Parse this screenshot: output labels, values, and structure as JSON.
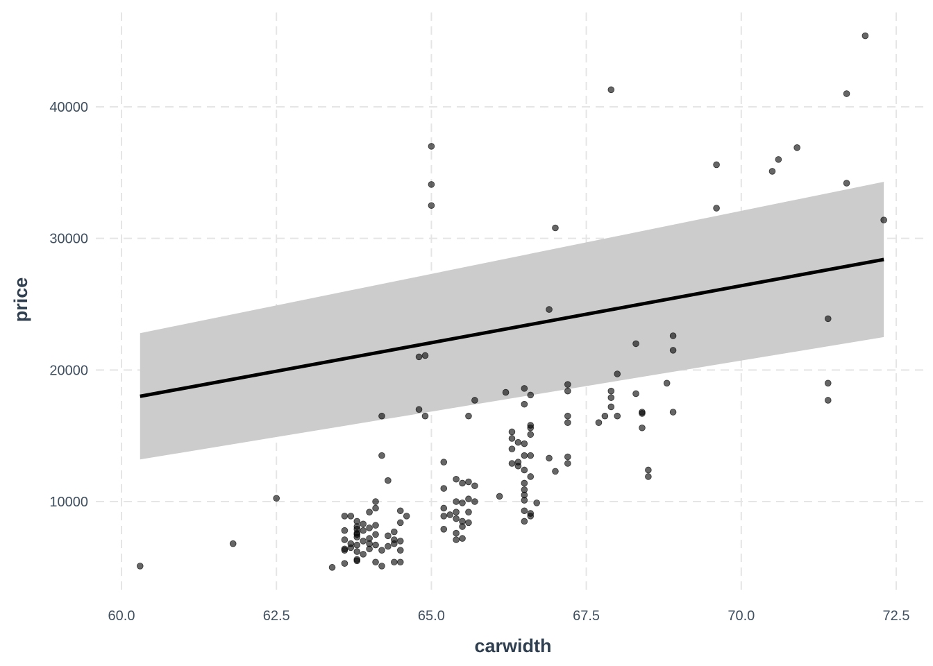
{
  "chart_data": {
    "type": "scatter",
    "title": "",
    "xlabel": "carwidth",
    "ylabel": "price",
    "xlim": [
      59.8,
      72.9
    ],
    "ylim": [
      3400,
      47000
    ],
    "x_ticks": [
      60.0,
      62.5,
      65.0,
      67.5,
      70.0,
      72.5
    ],
    "x_tick_labels": [
      "60.0",
      "62.5",
      "65.0",
      "67.5",
      "70.0",
      "72.5"
    ],
    "y_ticks": [
      10000,
      20000,
      30000,
      40000
    ],
    "y_tick_labels": [
      "10000",
      "20000",
      "30000",
      "40000"
    ],
    "grid": true,
    "legend": "none",
    "colors": {
      "points": "#000000",
      "fit_line": "#000000",
      "confidence_band": "#cccccc",
      "grid": "#e5e5e5"
    },
    "fit": {
      "method": "linear",
      "x": [
        60.3,
        72.3
      ],
      "y": [
        18000,
        28400
      ],
      "band_lower": [
        13200,
        22500
      ],
      "band_upper": [
        22800,
        34300
      ]
    },
    "points": [
      [
        60.3,
        5100
      ],
      [
        61.8,
        6800
      ],
      [
        62.5,
        10250
      ],
      [
        63.4,
        5000
      ],
      [
        63.6,
        6300
      ],
      [
        63.6,
        6400
      ],
      [
        63.6,
        7100
      ],
      [
        63.6,
        7800
      ],
      [
        63.6,
        8900
      ],
      [
        63.6,
        5300
      ],
      [
        63.7,
        6500
      ],
      [
        63.7,
        6800
      ],
      [
        63.7,
        8900
      ],
      [
        63.8,
        5500
      ],
      [
        63.8,
        6200
      ],
      [
        63.8,
        6700
      ],
      [
        63.8,
        7300
      ],
      [
        63.8,
        7600
      ],
      [
        63.8,
        7900
      ],
      [
        63.8,
        7500
      ],
      [
        63.8,
        8100
      ],
      [
        63.8,
        8500
      ],
      [
        63.8,
        5600
      ],
      [
        63.9,
        6000
      ],
      [
        63.9,
        7000
      ],
      [
        63.9,
        7800
      ],
      [
        63.9,
        8300
      ],
      [
        64.0,
        6400
      ],
      [
        64.0,
        7200
      ],
      [
        64.0,
        6800
      ],
      [
        64.0,
        9200
      ],
      [
        64.0,
        8000
      ],
      [
        64.1,
        5400
      ],
      [
        64.1,
        6700
      ],
      [
        64.1,
        7500
      ],
      [
        64.1,
        9500
      ],
      [
        64.1,
        10000
      ],
      [
        64.1,
        8200
      ],
      [
        64.2,
        13500
      ],
      [
        64.2,
        16500
      ],
      [
        64.2,
        5100
      ],
      [
        64.2,
        6300
      ],
      [
        64.3,
        11600
      ],
      [
        64.3,
        6600
      ],
      [
        64.3,
        7400
      ],
      [
        64.4,
        7100
      ],
      [
        64.4,
        7700
      ],
      [
        64.4,
        6800
      ],
      [
        64.4,
        5400
      ],
      [
        64.5,
        9300
      ],
      [
        64.5,
        8400
      ],
      [
        64.5,
        7000
      ],
      [
        64.5,
        6300
      ],
      [
        64.5,
        5400
      ],
      [
        64.6,
        8900
      ],
      [
        64.8,
        17000
      ],
      [
        64.8,
        21000
      ],
      [
        64.9,
        21100
      ],
      [
        64.9,
        16500
      ],
      [
        65.0,
        37000
      ],
      [
        65.0,
        32500
      ],
      [
        65.0,
        34100
      ],
      [
        65.2,
        13000
      ],
      [
        65.2,
        11000
      ],
      [
        65.2,
        8900
      ],
      [
        65.2,
        9500
      ],
      [
        65.2,
        7900
      ],
      [
        65.3,
        9000
      ],
      [
        65.4,
        11700
      ],
      [
        65.4,
        10000
      ],
      [
        65.4,
        9200
      ],
      [
        65.4,
        8700
      ],
      [
        65.4,
        7600
      ],
      [
        65.4,
        7100
      ],
      [
        65.5,
        11400
      ],
      [
        65.5,
        9900
      ],
      [
        65.5,
        8500
      ],
      [
        65.5,
        8100
      ],
      [
        65.5,
        7200
      ],
      [
        65.6,
        16500
      ],
      [
        65.6,
        11500
      ],
      [
        65.6,
        10200
      ],
      [
        65.6,
        9200
      ],
      [
        65.6,
        8400
      ],
      [
        65.7,
        17700
      ],
      [
        65.7,
        11200
      ],
      [
        65.7,
        10000
      ],
      [
        66.1,
        10400
      ],
      [
        66.2,
        18300
      ],
      [
        66.3,
        15300
      ],
      [
        66.3,
        14800
      ],
      [
        66.3,
        12900
      ],
      [
        66.3,
        14000
      ],
      [
        66.4,
        14500
      ],
      [
        66.4,
        13000
      ],
      [
        66.4,
        12700
      ],
      [
        66.5,
        17400
      ],
      [
        66.5,
        18600
      ],
      [
        66.5,
        14400
      ],
      [
        66.5,
        13500
      ],
      [
        66.5,
        10900
      ],
      [
        66.5,
        10500
      ],
      [
        66.5,
        10100
      ],
      [
        66.5,
        9300
      ],
      [
        66.5,
        8500
      ],
      [
        66.5,
        12400
      ],
      [
        66.5,
        11400
      ],
      [
        66.6,
        18100
      ],
      [
        66.6,
        15800
      ],
      [
        66.6,
        15600
      ],
      [
        66.6,
        15100
      ],
      [
        66.6,
        13500
      ],
      [
        66.6,
        11900
      ],
      [
        66.6,
        8900
      ],
      [
        66.6,
        9100
      ],
      [
        66.7,
        9900
      ],
      [
        66.9,
        13300
      ],
      [
        66.9,
        24600
      ],
      [
        67.0,
        30800
      ],
      [
        67.0,
        12300
      ],
      [
        67.2,
        16500
      ],
      [
        67.2,
        16000
      ],
      [
        67.2,
        18900
      ],
      [
        67.2,
        18400
      ],
      [
        67.2,
        13400
      ],
      [
        67.2,
        12900
      ],
      [
        67.7,
        16000
      ],
      [
        67.8,
        16500
      ],
      [
        67.9,
        41300
      ],
      [
        67.9,
        18400
      ],
      [
        67.9,
        17900
      ],
      [
        67.9,
        17200
      ],
      [
        68.0,
        19700
      ],
      [
        68.0,
        16500
      ],
      [
        68.3,
        22000
      ],
      [
        68.3,
        18200
      ],
      [
        68.4,
        15600
      ],
      [
        68.4,
        16800
      ],
      [
        68.4,
        16700
      ],
      [
        68.5,
        11900
      ],
      [
        68.5,
        12400
      ],
      [
        68.8,
        19000
      ],
      [
        68.9,
        21500
      ],
      [
        68.9,
        22600
      ],
      [
        68.9,
        16800
      ],
      [
        69.6,
        35600
      ],
      [
        69.6,
        32300
      ],
      [
        70.5,
        35100
      ],
      [
        70.6,
        36000
      ],
      [
        70.9,
        36900
      ],
      [
        71.4,
        23900
      ],
      [
        71.4,
        17700
      ],
      [
        71.4,
        19000
      ],
      [
        71.7,
        41000
      ],
      [
        71.7,
        34200
      ],
      [
        72.0,
        45400
      ],
      [
        72.3,
        31400
      ]
    ]
  }
}
